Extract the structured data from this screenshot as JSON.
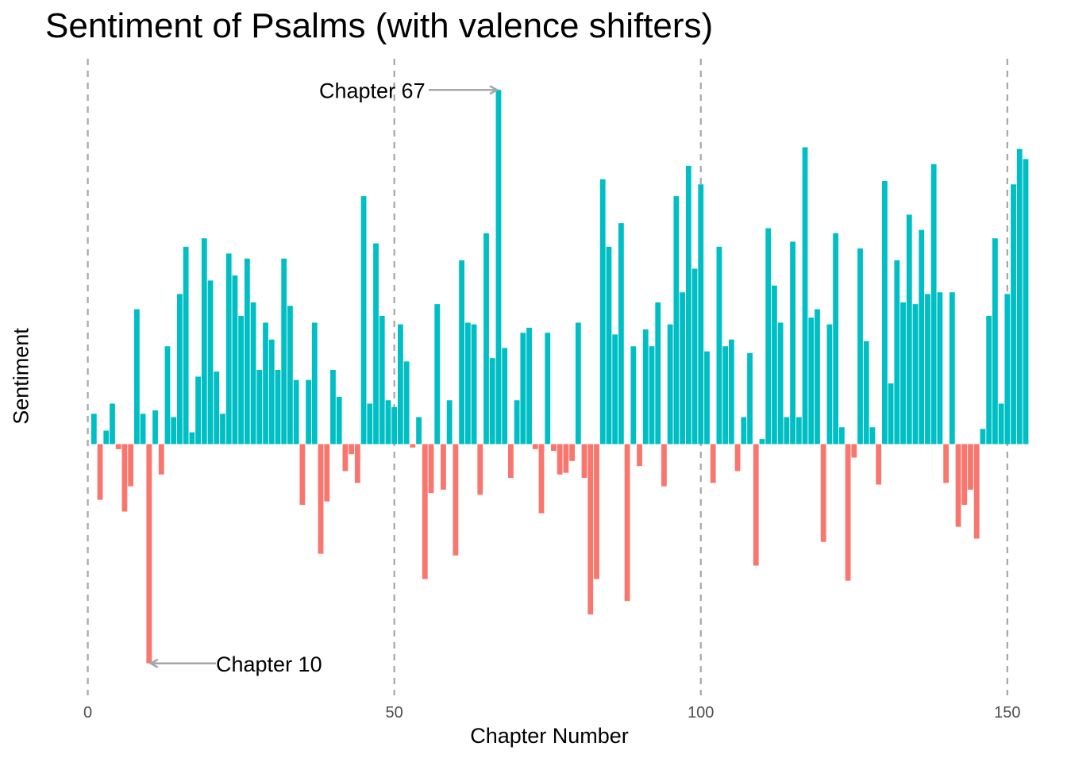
{
  "chart_data": {
    "type": "bar",
    "title": "Sentiment of Psalms (with valence shifters)",
    "xlabel": "Chapter Number",
    "ylabel": "Sentiment",
    "xlim": [
      0,
      150
    ],
    "x_ticks": [
      "0",
      "50",
      "100",
      "150"
    ],
    "x_tick_values": [
      0,
      50,
      100,
      150
    ],
    "y_tick_labels_shown": false,
    "gridlines": "vertical dashed at x ticks",
    "colors": {
      "positive": "#00BFC4",
      "negative": "#F8766D",
      "grid": "#a6a6a6",
      "arrow": "#a6a6a6"
    },
    "values": [
      0.18,
      -0.33,
      0.08,
      0.24,
      -0.03,
      -0.4,
      -0.25,
      0.8,
      0.18,
      -1.3,
      0.2,
      -0.18,
      0.58,
      0.16,
      0.89,
      1.17,
      0.07,
      0.4,
      1.22,
      0.97,
      0.43,
      0.18,
      1.13,
      1.0,
      0.76,
      1.1,
      0.84,
      0.44,
      0.72,
      0.62,
      0.44,
      1.1,
      0.82,
      0.38,
      -0.36,
      0.38,
      0.72,
      -0.65,
      -0.34,
      0.44,
      0.28,
      -0.16,
      -0.06,
      -0.23,
      1.47,
      0.24,
      1.19,
      0.76,
      0.26,
      0.22,
      0.71,
      0.49,
      -0.02,
      0.16,
      -0.8,
      -0.29,
      0.83,
      -0.27,
      0.26,
      -0.66,
      1.09,
      0.72,
      0.71,
      -0.3,
      1.25,
      0.51,
      2.1,
      0.57,
      -0.2,
      0.26,
      0.66,
      0.69,
      -0.03,
      -0.41,
      0.66,
      -0.04,
      -0.18,
      -0.17,
      -0.1,
      0.72,
      -0.2,
      -1.01,
      -0.8,
      1.57,
      1.17,
      0.65,
      1.31,
      -0.93,
      0.58,
      -0.13,
      0.68,
      0.58,
      0.84,
      -0.25,
      0.71,
      1.47,
      0.9,
      1.65,
      1.04,
      1.54,
      0.55,
      -0.23,
      1.17,
      0.58,
      0.62,
      -0.16,
      0.16,
      0.54,
      -0.72,
      0.03,
      1.28,
      0.94,
      0.72,
      0.16,
      1.2,
      0.16,
      1.76,
      0.75,
      0.8,
      -0.58,
      0.71,
      1.25,
      0.1,
      -0.81,
      -0.08,
      1.16,
      0.61,
      0.1,
      -0.24,
      1.56,
      0.36,
      1.09,
      0.84,
      1.36,
      0.83,
      1.27,
      0.89,
      1.66,
      0.9,
      -0.23,
      0.9,
      -0.49,
      -0.36,
      -0.27,
      -0.56,
      0.09,
      0.76,
      1.22,
      0.24,
      0.89,
      1.54,
      1.75,
      1.69
    ],
    "annotations": [
      {
        "label": "Chapter 67",
        "chapter": 67
      },
      {
        "label": "Chapter 10",
        "chapter": 10
      }
    ]
  }
}
